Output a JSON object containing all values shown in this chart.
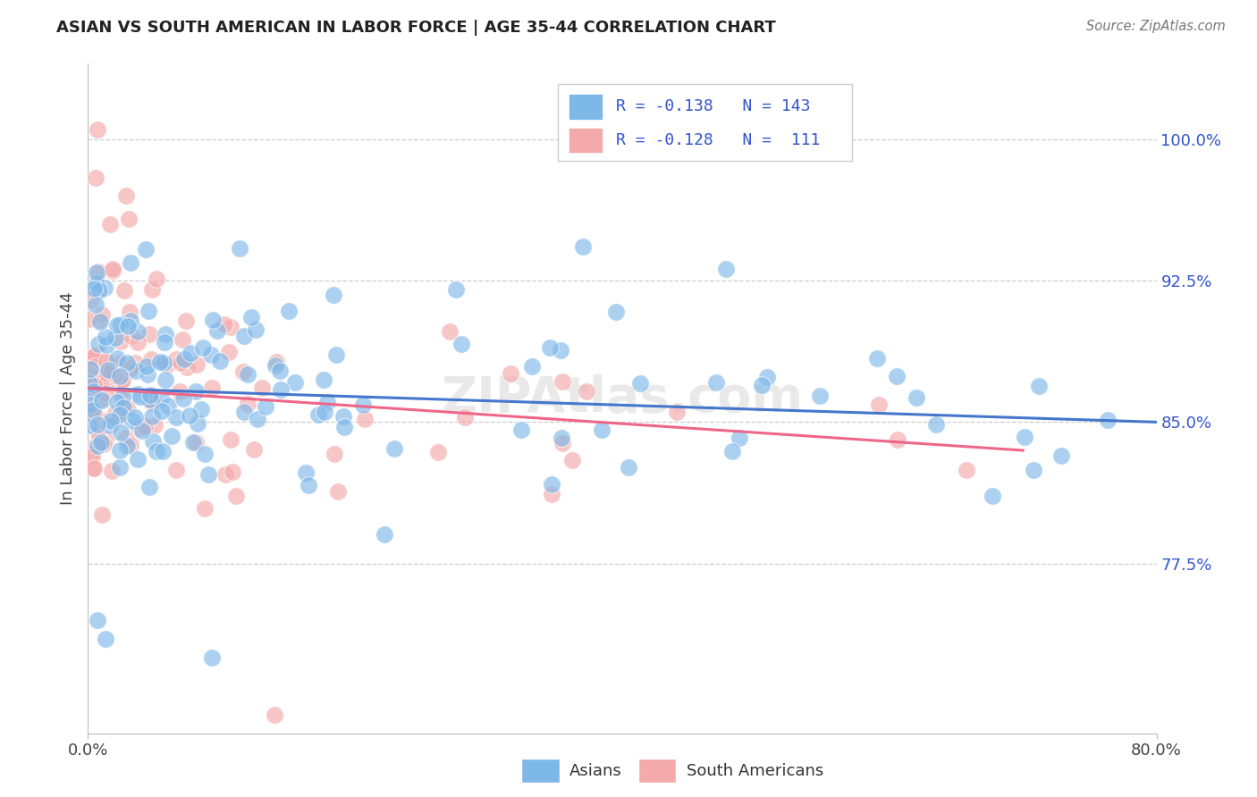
{
  "title": "ASIAN VS SOUTH AMERICAN IN LABOR FORCE | AGE 35-44 CORRELATION CHART",
  "source": "Source: ZipAtlas.com",
  "ylabel": "In Labor Force | Age 35-44",
  "ytick_labels": [
    "77.5%",
    "85.0%",
    "92.5%",
    "100.0%"
  ],
  "ytick_values": [
    0.775,
    0.85,
    0.925,
    1.0
  ],
  "xlim": [
    0.0,
    0.8
  ],
  "ylim": [
    0.685,
    1.04
  ],
  "legend_r_asian": "-0.138",
  "legend_n_asian": "143",
  "legend_r_sa": "-0.128",
  "legend_n_sa": "111",
  "color_asian": "#7EB8E8",
  "color_sa": "#F4AAAA",
  "color_text_blue": "#3355CC",
  "color_regression_asian": "#4477CC",
  "color_regression_sa": "#EE6688",
  "background_color": "#FFFFFF",
  "grid_color": "#CCCCCC",
  "watermark": "ZIPAtlas.com"
}
